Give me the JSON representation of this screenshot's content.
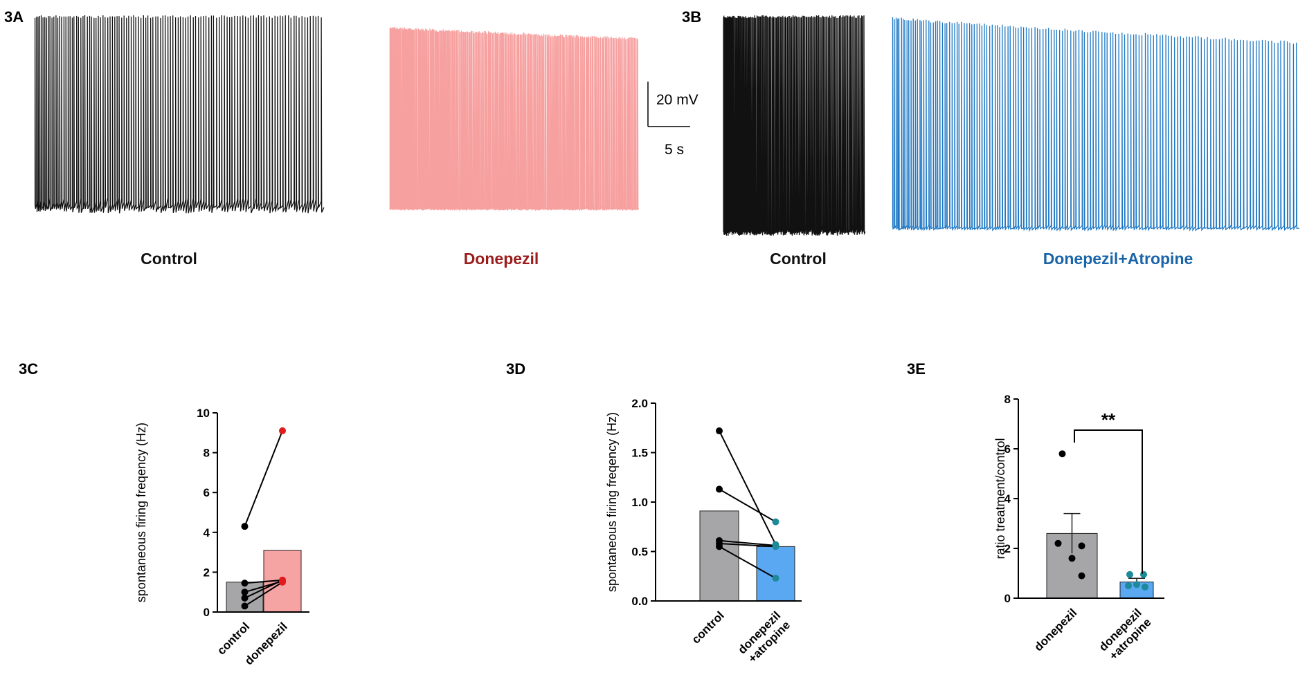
{
  "panels": [
    {
      "label": "3A",
      "traces": [
        {
          "name": "Control",
          "color": "#111111"
        },
        {
          "name": "Donepezil",
          "color": "#f7a0a0",
          "label_color": "#9b1c1c"
        }
      ]
    },
    {
      "label": "3B",
      "traces": [
        {
          "name": "Control",
          "color": "#111111"
        },
        {
          "name": "Donepezil+Atropine",
          "color": "#1f78c4",
          "label_color": "#1a64a8"
        }
      ]
    }
  ],
  "scale_bar": {
    "y": "20 mV",
    "x": "5 s"
  },
  "chart_data": [
    {
      "type": "bar",
      "title": "3C",
      "ylabel": "spontaneous firing freqency (Hz)",
      "categories": [
        "control",
        "donepezil"
      ],
      "values": [
        1.5,
        3.1
      ],
      "colors": [
        "#a6a6a9",
        "#f5a3a3"
      ],
      "points": [
        [
          4.3,
          1.45,
          1.0,
          0.7,
          0.3
        ],
        [
          9.1,
          1.6,
          1.55,
          1.6,
          1.5
        ]
      ],
      "point_colors": [
        "#000000",
        "#e31a1c"
      ],
      "paired": true,
      "ylim": [
        0,
        10
      ],
      "yticks": [
        0,
        2,
        4,
        6,
        8,
        10
      ]
    },
    {
      "type": "bar",
      "title": "3D",
      "ylabel": "spontaneous firing freqency (Hz)",
      "categories": [
        "control",
        "donepezil\n+atropine"
      ],
      "values": [
        0.91,
        0.55
      ],
      "colors": [
        "#a6a6a9",
        "#5aa7f2"
      ],
      "points": [
        [
          1.72,
          1.13,
          0.61,
          0.58,
          0.55
        ],
        [
          0.57,
          0.8,
          0.56,
          0.55,
          0.23
        ]
      ],
      "point_colors": [
        "#000000",
        "#1c8a99"
      ],
      "paired": true,
      "ylim": [
        0,
        2
      ],
      "yticks": [
        {
          "value": 0,
          "label": "0.0"
        },
        0.5,
        {
          "value": 1,
          "label": "1.0"
        },
        1.5,
        {
          "value": 2,
          "label": "2.0"
        }
      ]
    },
    {
      "type": "bar",
      "title": "3E",
      "ylabel": "ratio treatment/control",
      "categories": [
        "donepezil",
        "donepezil\n+atropine"
      ],
      "values": [
        2.6,
        0.65
      ],
      "errors": [
        0.8,
        0.15
      ],
      "colors": [
        "#a6a6a9",
        "#5aa7f2"
      ],
      "points": [
        [
          5.8,
          2.2,
          2.1,
          1.6,
          0.9
        ],
        [
          0.95,
          0.95,
          0.55,
          0.5,
          0.45
        ]
      ],
      "point_colors": [
        "#000000",
        "#1c8a99"
      ],
      "paired": false,
      "annotation": "**",
      "ylim": [
        0,
        8
      ],
      "yticks": [
        0,
        2,
        4,
        6,
        8
      ]
    }
  ]
}
